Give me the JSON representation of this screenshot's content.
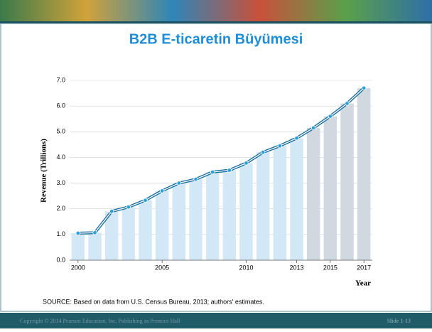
{
  "slide": {
    "title": "B2B E-ticaretin Büyümesi",
    "source": "SOURCE:  Based on data from U.S. Census Bureau, 2013; authors' estimates.",
    "copyright": "Copyright © 2014 Pearson Education, Inc. Publishing as Prentice Hall",
    "slide_number": "Slide 1-13"
  },
  "chart_data": {
    "type": "bar-line",
    "y_label": "Revenue (Trillions)",
    "x_label": "Year",
    "x": [
      2000,
      2001,
      2002,
      2003,
      2004,
      2005,
      2006,
      2007,
      2008,
      2009,
      2010,
      2011,
      2012,
      2013,
      2014,
      2015,
      2016,
      2017
    ],
    "values": [
      1.05,
      1.07,
      1.9,
      2.07,
      2.33,
      2.7,
      3.0,
      3.15,
      3.43,
      3.5,
      3.78,
      4.2,
      4.45,
      4.75,
      5.15,
      5.6,
      6.1,
      6.7
    ],
    "bar_colors": [
      "#d3e8f6",
      "#d3e8f6",
      "#d3e8f6",
      "#d3e8f6",
      "#d3e8f6",
      "#d3e8f6",
      "#d3e8f6",
      "#d3e8f6",
      "#d3e8f6",
      "#d3e8f6",
      "#d3e8f6",
      "#d3e8f6",
      "#d3e8f6",
      "#d3e8f6",
      "#cfd9df",
      "#cfd9df",
      "#cfd9df",
      "#cfd9df"
    ],
    "line_color": "#1b6f9e",
    "point_color": "#2a9fd8",
    "xlim": [
      1999.5,
      2017.5
    ],
    "xticks": [
      2000,
      2005,
      2010,
      2013,
      2015,
      2017
    ],
    "ylim": [
      0,
      7
    ],
    "yticks": [
      {
        "value": 0,
        "label": "0.0"
      },
      {
        "value": 1,
        "label": "1.0"
      },
      {
        "value": 2,
        "label": "2.0"
      },
      {
        "value": 3,
        "label": "3.0"
      },
      {
        "value": 4,
        "label": "4.0"
      },
      {
        "value": 5,
        "label": "5.0"
      },
      {
        "value": 6,
        "label": "6.0"
      },
      {
        "value": 7,
        "label": "7.0"
      }
    ],
    "grid": true
  }
}
